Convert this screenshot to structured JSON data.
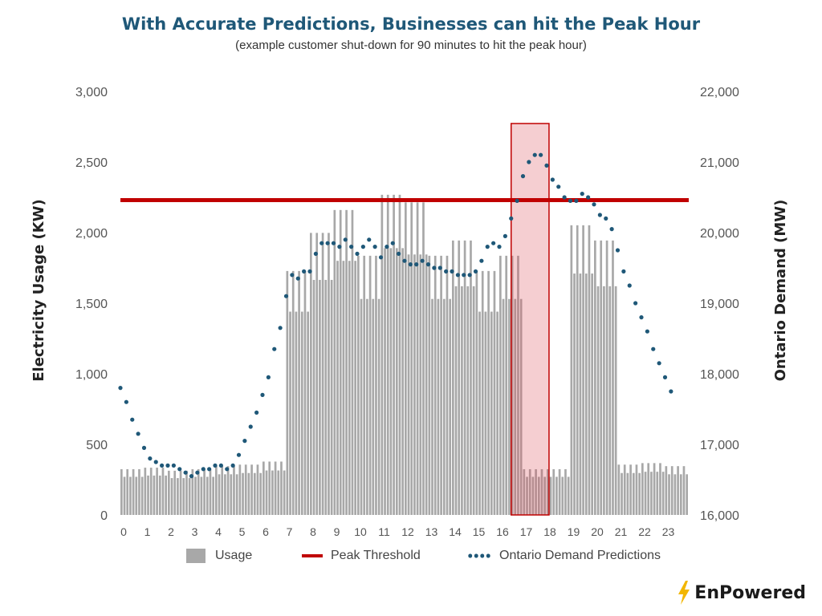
{
  "title": "With Accurate Predictions, Businesses can hit the Peak Hour",
  "subtitle": "(example customer shut-down for 90 minutes to hit the peak hour)",
  "brand": {
    "name": "EnPowered",
    "accent": "#f2b600"
  },
  "legend": {
    "usage": "Usage",
    "peak": "Peak Threshold",
    "demand": "Ontario Demand Predictions"
  },
  "colors": {
    "usage": "#a8a8a8",
    "peak": "#c00000",
    "demand": "#1f5878",
    "highlight_fill": "rgba(220,80,90,0.28)",
    "highlight_stroke": "#c00000"
  },
  "chart_data": {
    "type": "bar",
    "ylabel_left": "Electricity Usage (KW)",
    "ylabel_right": "Ontario Demand (MW)",
    "ylim_left": [
      0,
      3000
    ],
    "ylim_right": [
      16000,
      22000
    ],
    "yticks_left": [
      "0",
      "500",
      "1,000",
      "1,500",
      "2,000",
      "2,500",
      "3,000"
    ],
    "yticks_right": [
      "16,000",
      "17,000",
      "18,000",
      "19,000",
      "20,000",
      "21,000",
      "22,000"
    ],
    "xlim": [
      0,
      24
    ],
    "xticks": [
      "0",
      "1",
      "2",
      "3",
      "4",
      "5",
      "6",
      "7",
      "8",
      "9",
      "10",
      "11",
      "12",
      "13",
      "14",
      "15",
      "16",
      "17",
      "18",
      "19",
      "20",
      "21",
      "22",
      "23"
    ],
    "peak_threshold_kw": 2230,
    "highlight_hours": [
      16.5,
      18.1
    ],
    "usage_hourly_avg_kw": [
      300,
      310,
      290,
      300,
      320,
      330,
      350,
      1600,
      1850,
      2000,
      1700,
      2100,
      2050,
      1700,
      1800,
      1600,
      1700,
      300,
      300,
      1900,
      1800,
      330,
      340,
      320
    ],
    "demand_points": [
      [
        0.0,
        17800
      ],
      [
        0.25,
        17600
      ],
      [
        0.5,
        17350
      ],
      [
        0.75,
        17150
      ],
      [
        1.0,
        16950
      ],
      [
        1.25,
        16800
      ],
      [
        1.5,
        16750
      ],
      [
        1.75,
        16700
      ],
      [
        2.0,
        16700
      ],
      [
        2.25,
        16700
      ],
      [
        2.5,
        16650
      ],
      [
        2.75,
        16600
      ],
      [
        3.0,
        16550
      ],
      [
        3.25,
        16600
      ],
      [
        3.5,
        16650
      ],
      [
        3.75,
        16650
      ],
      [
        4.0,
        16700
      ],
      [
        4.25,
        16700
      ],
      [
        4.5,
        16650
      ],
      [
        4.75,
        16700
      ],
      [
        5.0,
        16850
      ],
      [
        5.25,
        17050
      ],
      [
        5.5,
        17250
      ],
      [
        5.75,
        17450
      ],
      [
        6.0,
        17700
      ],
      [
        6.25,
        17950
      ],
      [
        6.5,
        18350
      ],
      [
        6.75,
        18650
      ],
      [
        7.0,
        19100
      ],
      [
        7.25,
        19400
      ],
      [
        7.5,
        19350
      ],
      [
        7.75,
        19450
      ],
      [
        8.0,
        19450
      ],
      [
        8.25,
        19700
      ],
      [
        8.5,
        19850
      ],
      [
        8.75,
        19850
      ],
      [
        9.0,
        19850
      ],
      [
        9.25,
        19800
      ],
      [
        9.5,
        19900
      ],
      [
        9.75,
        19800
      ],
      [
        10.0,
        19700
      ],
      [
        10.25,
        19800
      ],
      [
        10.5,
        19900
      ],
      [
        10.75,
        19800
      ],
      [
        11.0,
        19650
      ],
      [
        11.25,
        19800
      ],
      [
        11.5,
        19850
      ],
      [
        11.75,
        19700
      ],
      [
        12.0,
        19600
      ],
      [
        12.25,
        19550
      ],
      [
        12.5,
        19550
      ],
      [
        12.75,
        19600
      ],
      [
        13.0,
        19550
      ],
      [
        13.25,
        19500
      ],
      [
        13.5,
        19500
      ],
      [
        13.75,
        19450
      ],
      [
        14.0,
        19450
      ],
      [
        14.25,
        19400
      ],
      [
        14.5,
        19400
      ],
      [
        14.75,
        19400
      ],
      [
        15.0,
        19450
      ],
      [
        15.25,
        19600
      ],
      [
        15.5,
        19800
      ],
      [
        15.75,
        19850
      ],
      [
        16.0,
        19800
      ],
      [
        16.25,
        19950
      ],
      [
        16.5,
        20200
      ],
      [
        16.75,
        20450
      ],
      [
        17.0,
        20800
      ],
      [
        17.25,
        21000
      ],
      [
        17.5,
        21100
      ],
      [
        17.75,
        21100
      ],
      [
        18.0,
        20950
      ],
      [
        18.25,
        20750
      ],
      [
        18.5,
        20650
      ],
      [
        18.75,
        20500
      ],
      [
        19.0,
        20450
      ],
      [
        19.25,
        20450
      ],
      [
        19.5,
        20550
      ],
      [
        19.75,
        20500
      ],
      [
        20.0,
        20400
      ],
      [
        20.25,
        20250
      ],
      [
        20.5,
        20200
      ],
      [
        20.75,
        20050
      ],
      [
        21.0,
        19750
      ],
      [
        21.25,
        19450
      ],
      [
        21.5,
        19250
      ],
      [
        21.75,
        19000
      ],
      [
        22.0,
        18800
      ],
      [
        22.25,
        18600
      ],
      [
        22.5,
        18350
      ],
      [
        22.75,
        18150
      ],
      [
        23.0,
        17950
      ],
      [
        23.25,
        17750
      ]
    ]
  }
}
